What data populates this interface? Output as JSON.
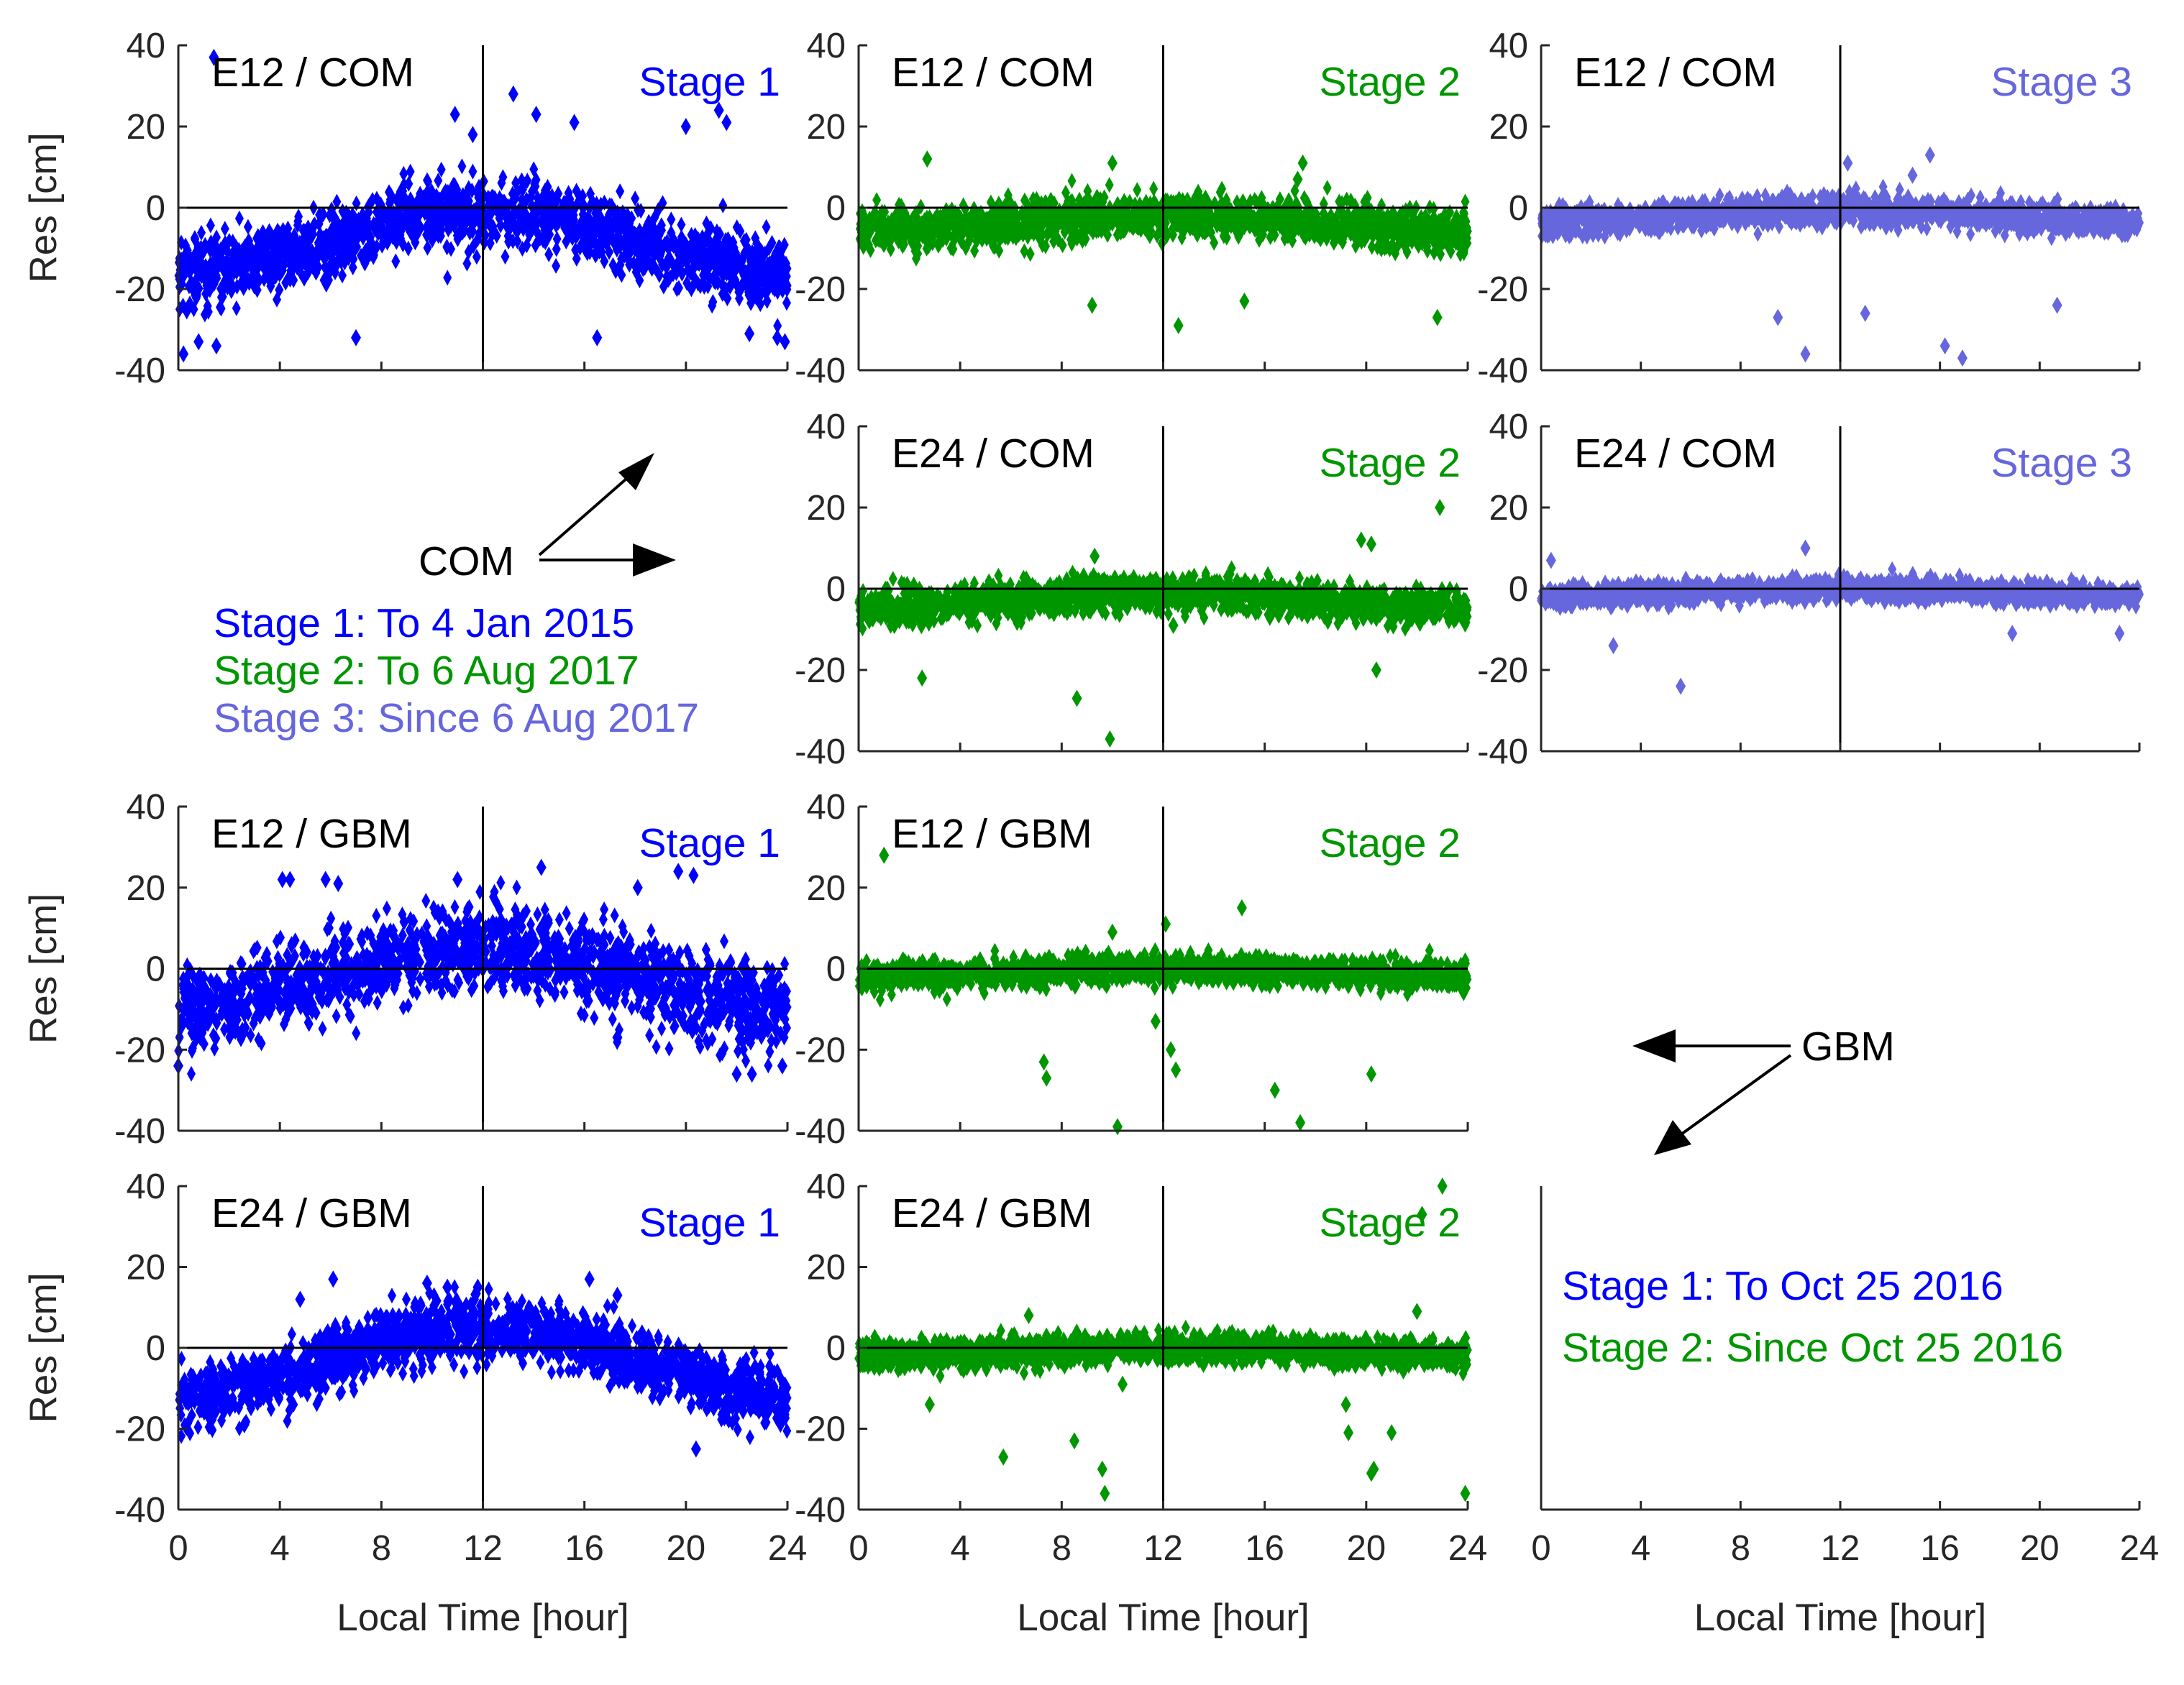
{
  "figure": {
    "colors": {
      "stage1": "#0000ff",
      "stage2": "#009600",
      "stage3": "#6666dd",
      "axis": "#262626",
      "ref": "#000000"
    },
    "axis_labels": {
      "x": "Local Time [hour]",
      "y": "Res [cm]"
    },
    "com_block": {
      "label": "COM",
      "legend": [
        {
          "text": "Stage 1: To 4 Jan 2015",
          "stage": "stage1"
        },
        {
          "text": "Stage 2: To 6 Aug 2017",
          "stage": "stage2"
        },
        {
          "text": "Stage 3: Since 6 Aug 2017",
          "stage": "stage3"
        }
      ]
    },
    "gbm_block": {
      "label": "GBM",
      "legend": [
        {
          "text": "Stage 1: To Oct 25 2016",
          "stage": "stage1"
        },
        {
          "text": "Stage 2: Since Oct 25 2016",
          "stage": "stage2"
        }
      ]
    }
  },
  "chart_data": [
    {
      "id": "p11",
      "type": "scatter",
      "title": "E12 / COM",
      "stage_label": "Stage 1",
      "stage": "stage1",
      "xlim": [
        0,
        24
      ],
      "ylim": [
        -40,
        40
      ],
      "xticks": [
        0,
        4,
        8,
        12,
        16,
        20,
        24
      ],
      "yticks": [
        -40,
        -20,
        0,
        20,
        40
      ],
      "ylabel": "Res [cm]",
      "xlabel": "",
      "mean_curve": {
        "offset": -9,
        "amp": 8,
        "spread": 10
      },
      "outliers": [
        [
          1.4,
          37
        ],
        [
          0.2,
          -36
        ],
        [
          0.8,
          -33
        ],
        [
          1.5,
          -34
        ],
        [
          7,
          -32
        ],
        [
          10.9,
          23
        ],
        [
          11.6,
          18
        ],
        [
          13.2,
          28
        ],
        [
          14.1,
          23
        ],
        [
          15.6,
          21
        ],
        [
          16.5,
          -32
        ],
        [
          20.0,
          20
        ],
        [
          21.3,
          24
        ],
        [
          21.6,
          21
        ],
        [
          22.5,
          -31
        ],
        [
          23.6,
          -32
        ],
        [
          23.9,
          -33
        ]
      ]
    },
    {
      "id": "p12",
      "type": "scatter",
      "title": "E12 / COM",
      "stage_label": "Stage 2",
      "stage": "stage2",
      "xlim": [
        0,
        24
      ],
      "ylim": [
        -40,
        40
      ],
      "xticks": [
        0,
        4,
        8,
        12,
        16,
        20,
        24
      ],
      "yticks": [
        -40,
        -20,
        0,
        20,
        40
      ],
      "ylabel": "",
      "xlabel": "",
      "mean_curve": {
        "offset": -4,
        "amp": 2,
        "spread": 6
      },
      "outliers": [
        [
          2.7,
          12
        ],
        [
          10.0,
          11
        ],
        [
          17.5,
          11
        ],
        [
          17.3,
          7
        ],
        [
          9.2,
          -24
        ],
        [
          12.6,
          -29
        ],
        [
          15.2,
          -23
        ],
        [
          22.8,
          -27
        ]
      ]
    },
    {
      "id": "p13",
      "type": "scatter",
      "title": "E12 / COM",
      "stage_label": "Stage 3",
      "stage": "stage3",
      "xlim": [
        0,
        24
      ],
      "ylim": [
        -40,
        40
      ],
      "xticks": [
        0,
        4,
        8,
        12,
        16,
        20,
        24
      ],
      "yticks": [
        -40,
        -20,
        0,
        20,
        40
      ],
      "ylabel": "",
      "xlabel": "",
      "mean_curve": {
        "offset": -2,
        "amp": 1.5,
        "spread": 4
      },
      "outliers": [
        [
          12.3,
          11
        ],
        [
          15.6,
          13
        ],
        [
          14.9,
          8
        ],
        [
          9.5,
          -27
        ],
        [
          10.6,
          -36
        ],
        [
          13.0,
          -26
        ],
        [
          16.2,
          -34
        ],
        [
          16.9,
          -37
        ],
        [
          20.7,
          -24
        ]
      ]
    },
    {
      "id": "p22",
      "type": "scatter",
      "title": "E24 / COM",
      "stage_label": "Stage 2",
      "stage": "stage2",
      "xlim": [
        0,
        24
      ],
      "ylim": [
        -40,
        40
      ],
      "xticks": [
        0,
        4,
        8,
        12,
        16,
        20,
        24
      ],
      "yticks": [
        -40,
        -20,
        0,
        20,
        40
      ],
      "ylabel": "",
      "xlabel": "",
      "mean_curve": {
        "offset": -3,
        "amp": 2,
        "spread": 5
      },
      "outliers": [
        [
          22.9,
          20
        ],
        [
          19.8,
          12
        ],
        [
          20.2,
          11
        ],
        [
          9.3,
          8
        ],
        [
          2.5,
          -22
        ],
        [
          8.6,
          -27
        ],
        [
          9.9,
          -37
        ],
        [
          12.4,
          -9
        ],
        [
          20.4,
          -20
        ]
      ]
    },
    {
      "id": "p23",
      "type": "scatter",
      "title": "E24 / COM",
      "stage_label": "Stage 3",
      "stage": "stage3",
      "xlim": [
        0,
        24
      ],
      "ylim": [
        -40,
        40
      ],
      "xticks": [
        0,
        4,
        8,
        12,
        16,
        20,
        24
      ],
      "yticks": [
        -40,
        -20,
        0,
        20,
        40
      ],
      "ylabel": "",
      "xlabel": "",
      "mean_curve": {
        "offset": -1,
        "amp": 1,
        "spread": 3
      },
      "outliers": [
        [
          10.6,
          10
        ],
        [
          0.4,
          7
        ],
        [
          2.9,
          -14
        ],
        [
          5.6,
          -24
        ],
        [
          18.9,
          -11
        ],
        [
          23.2,
          -11
        ]
      ]
    },
    {
      "id": "p31",
      "type": "scatter",
      "title": "E12 / GBM",
      "stage_label": "Stage 1",
      "stage": "stage1",
      "xlim": [
        0,
        24
      ],
      "ylim": [
        -40,
        40
      ],
      "xticks": [
        0,
        4,
        8,
        12,
        16,
        20,
        24
      ],
      "yticks": [
        -40,
        -20,
        0,
        20,
        40
      ],
      "ylabel": "Res [cm]",
      "xlabel": "",
      "mean_curve": {
        "offset": -3,
        "amp": 8,
        "spread": 12
      },
      "outliers": [
        [
          4.1,
          22
        ],
        [
          4.4,
          22
        ],
        [
          5.8,
          22
        ],
        [
          6.3,
          21
        ],
        [
          11,
          22
        ],
        [
          14.3,
          25
        ],
        [
          18.1,
          20
        ],
        [
          19.7,
          24
        ],
        [
          20.3,
          23
        ],
        [
          0.0,
          -24
        ],
        [
          22.0,
          -26
        ],
        [
          22.6,
          -26
        ],
        [
          23.8,
          -24
        ],
        [
          17.3,
          -17
        ]
      ]
    },
    {
      "id": "p32",
      "type": "scatter",
      "title": "E12 / GBM",
      "stage_label": "Stage 2",
      "stage": "stage2",
      "xlim": [
        0,
        24
      ],
      "ylim": [
        -40,
        40
      ],
      "xticks": [
        0,
        4,
        8,
        12,
        16,
        20,
        24
      ],
      "yticks": [
        -40,
        -20,
        0,
        20,
        40
      ],
      "ylabel": "",
      "xlabel": "",
      "mean_curve": {
        "offset": -1,
        "amp": 1,
        "spread": 4
      },
      "outliers": [
        [
          1.0,
          28
        ],
        [
          15.1,
          15
        ],
        [
          10.0,
          9
        ],
        [
          12.1,
          11
        ],
        [
          7.3,
          -23
        ],
        [
          7.4,
          -27
        ],
        [
          10.2,
          -39
        ],
        [
          12.3,
          -20
        ],
        [
          12.5,
          -25
        ],
        [
          16.4,
          -30
        ],
        [
          17.4,
          -38
        ],
        [
          20.2,
          -26
        ],
        [
          11.7,
          -13
        ]
      ]
    },
    {
      "id": "p41",
      "type": "scatter",
      "title": "E24 / GBM",
      "stage_label": "Stage 1",
      "stage": "stage1",
      "xlim": [
        0,
        24
      ],
      "ylim": [
        -40,
        40
      ],
      "xticks": [
        0,
        4,
        8,
        12,
        16,
        20,
        24
      ],
      "yticks": [
        -40,
        -20,
        0,
        20,
        40
      ],
      "ylabel": "Res [cm]",
      "xlabel": "Local Time [hour]",
      "mean_curve": {
        "offset": -4,
        "amp": 9,
        "spread": 9
      },
      "outliers": [
        [
          4.8,
          12
        ],
        [
          6.1,
          17
        ],
        [
          9.8,
          16
        ],
        [
          10.6,
          15
        ],
        [
          11.8,
          15
        ],
        [
          16.2,
          17
        ],
        [
          17.3,
          13
        ],
        [
          20.4,
          -25
        ],
        [
          2.6,
          -19
        ]
      ]
    },
    {
      "id": "p42",
      "type": "scatter",
      "title": "E24 / GBM",
      "stage_label": "Stage 2",
      "stage": "stage2",
      "xlim": [
        0,
        24
      ],
      "ylim": [
        -40,
        40
      ],
      "xticks": [
        0,
        4,
        8,
        12,
        16,
        20,
        24
      ],
      "yticks": [
        -40,
        -20,
        0,
        20,
        40
      ],
      "ylabel": "",
      "xlabel": "Local Time [hour]",
      "mean_curve": {
        "offset": -1,
        "amp": 1,
        "spread": 4
      },
      "outliers": [
        [
          23.0,
          40
        ],
        [
          22.2,
          33
        ],
        [
          22.0,
          9
        ],
        [
          6.7,
          8
        ],
        [
          2.8,
          -14
        ],
        [
          5.7,
          -27
        ],
        [
          8.5,
          -23
        ],
        [
          9.6,
          -30
        ],
        [
          9.7,
          -36
        ],
        [
          10.4,
          -9
        ],
        [
          19.2,
          -14
        ],
        [
          19.3,
          -21
        ],
        [
          20.2,
          -31
        ],
        [
          20.3,
          -30
        ],
        [
          21.0,
          -21
        ],
        [
          23.9,
          -36
        ]
      ]
    },
    {
      "id": "p43",
      "type": "scatter",
      "title": "",
      "stage_label": "",
      "stage": "stage1",
      "xlim": [
        0,
        24
      ],
      "ylim": [
        -40,
        40
      ],
      "xticks": [
        0,
        4,
        8,
        12,
        16,
        20,
        24
      ],
      "yticks": [],
      "ylabel": "",
      "xlabel": "Local Time [hour]",
      "empty": true,
      "mean_curve": null,
      "outliers": []
    }
  ]
}
